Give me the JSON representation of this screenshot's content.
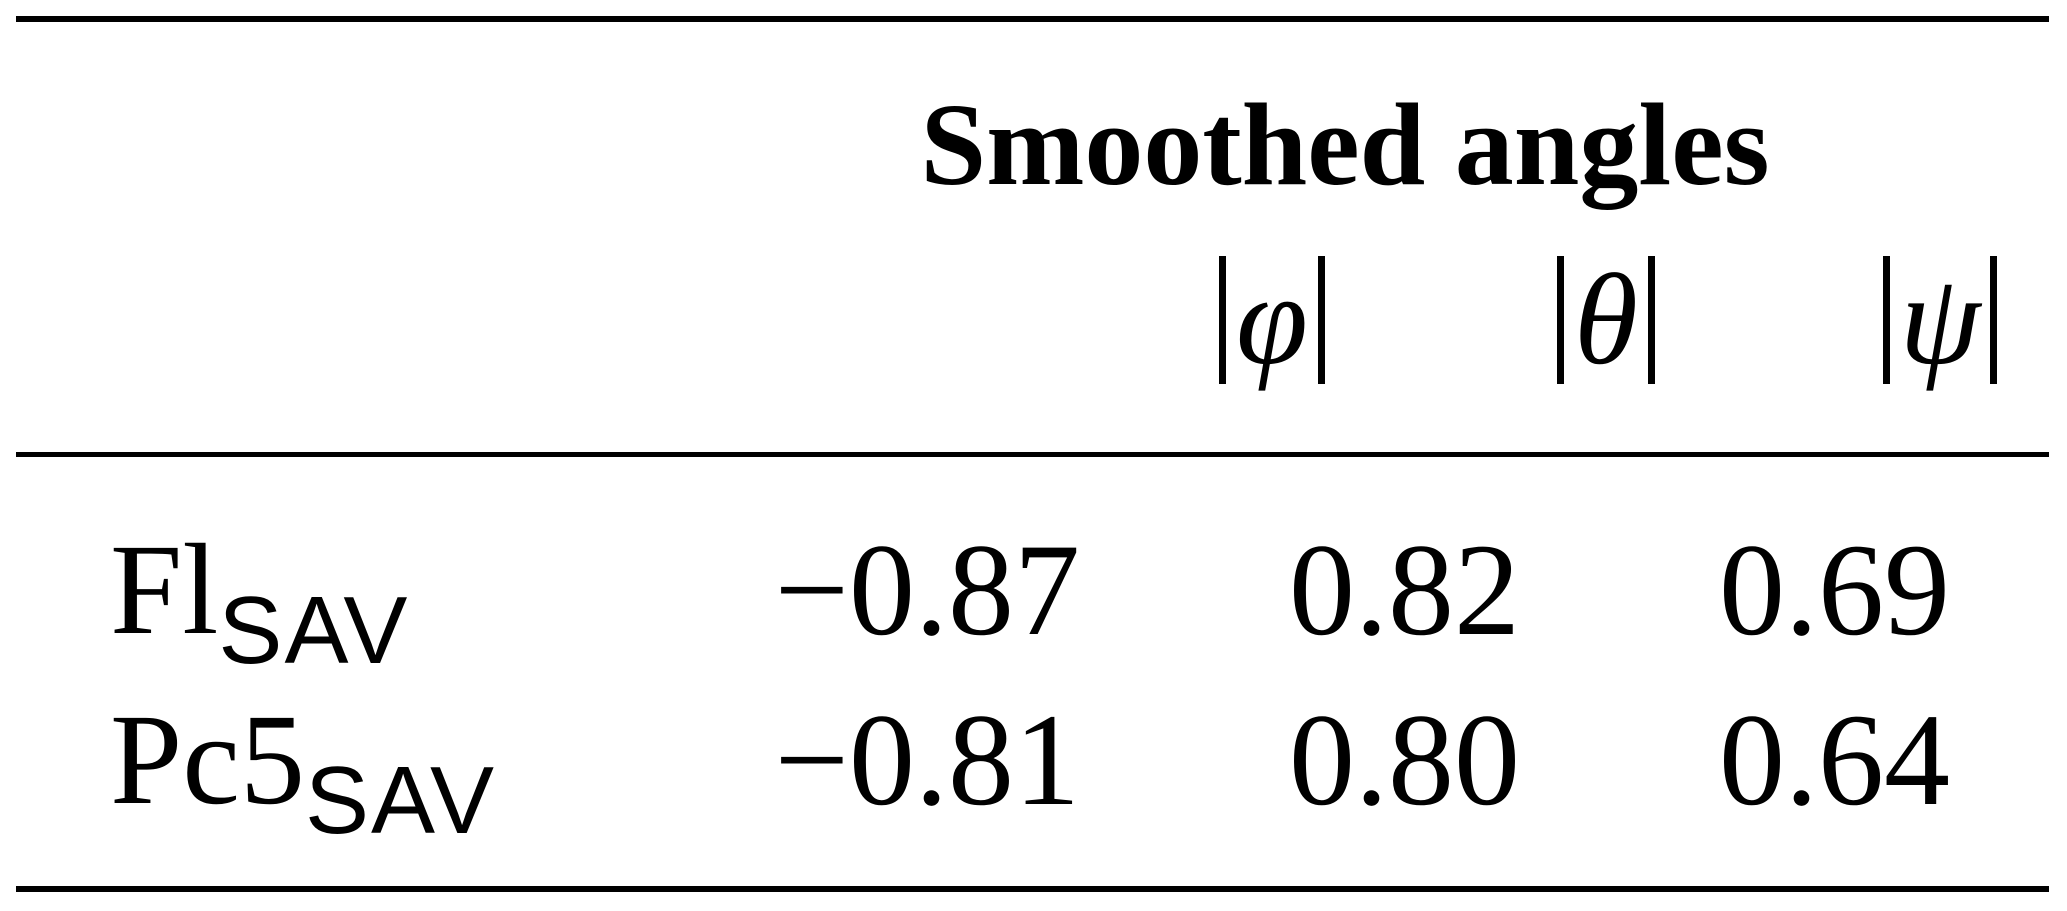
{
  "table": {
    "group_header": "Smoothed angles",
    "columns": [
      {
        "symbol": "φ"
      },
      {
        "symbol": "θ"
      },
      {
        "symbol": "ψ"
      }
    ],
    "rows": [
      {
        "label_main": "Fl",
        "label_sub": "SAV",
        "values": [
          "−0.87",
          "0.82",
          "0.69"
        ]
      },
      {
        "label_main": "Pc5",
        "label_sub": "SAV",
        "values": [
          "−0.81",
          "0.80",
          "0.64"
        ]
      }
    ]
  }
}
